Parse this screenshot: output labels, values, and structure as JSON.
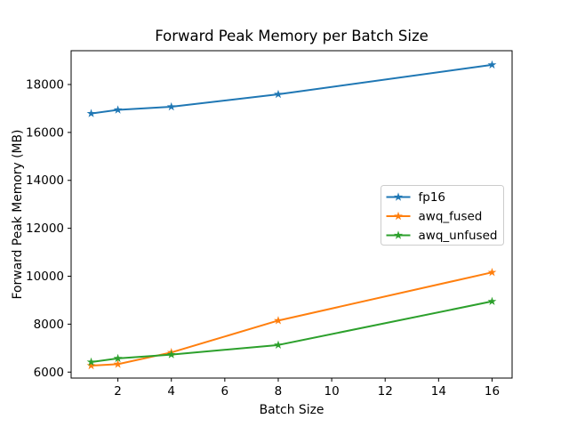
{
  "figure": {
    "title": "Forward Peak Memory per Batch Size",
    "xlabel": "Batch Size",
    "ylabel": "Forward Peak Memory (MB)"
  },
  "chart_data": {
    "type": "line",
    "title": "Forward Peak Memory per Batch Size",
    "xlabel": "Batch Size",
    "ylabel": "Forward Peak Memory (MB)",
    "x": [
      1,
      2,
      4,
      8,
      16
    ],
    "series": [
      {
        "name": "fp16",
        "color": "#1f77b4",
        "marker": "star",
        "values": [
          16790,
          16940,
          17070,
          17590,
          18820
        ]
      },
      {
        "name": "awq_fused",
        "color": "#ff7f0e",
        "marker": "star",
        "values": [
          6270,
          6330,
          6820,
          8150,
          10160
        ]
      },
      {
        "name": "awq_unfused",
        "color": "#2ca02c",
        "marker": "star",
        "values": [
          6420,
          6570,
          6730,
          7130,
          8950
        ]
      }
    ],
    "xticks": [
      2,
      4,
      6,
      8,
      10,
      12,
      14,
      16
    ],
    "yticks": [
      6000,
      8000,
      10000,
      12000,
      14000,
      16000,
      18000
    ],
    "xlim": [
      0.25,
      16.75
    ],
    "ylim": [
      5750,
      19410
    ],
    "grid": false,
    "legend": {
      "loc": "center right",
      "entries": [
        "fp16",
        "awq_fused",
        "awq_unfused"
      ]
    },
    "colors": {
      "background": "#ffffff",
      "spine": "#000000",
      "text": "#000000",
      "legend_border": "#cccccc"
    }
  }
}
